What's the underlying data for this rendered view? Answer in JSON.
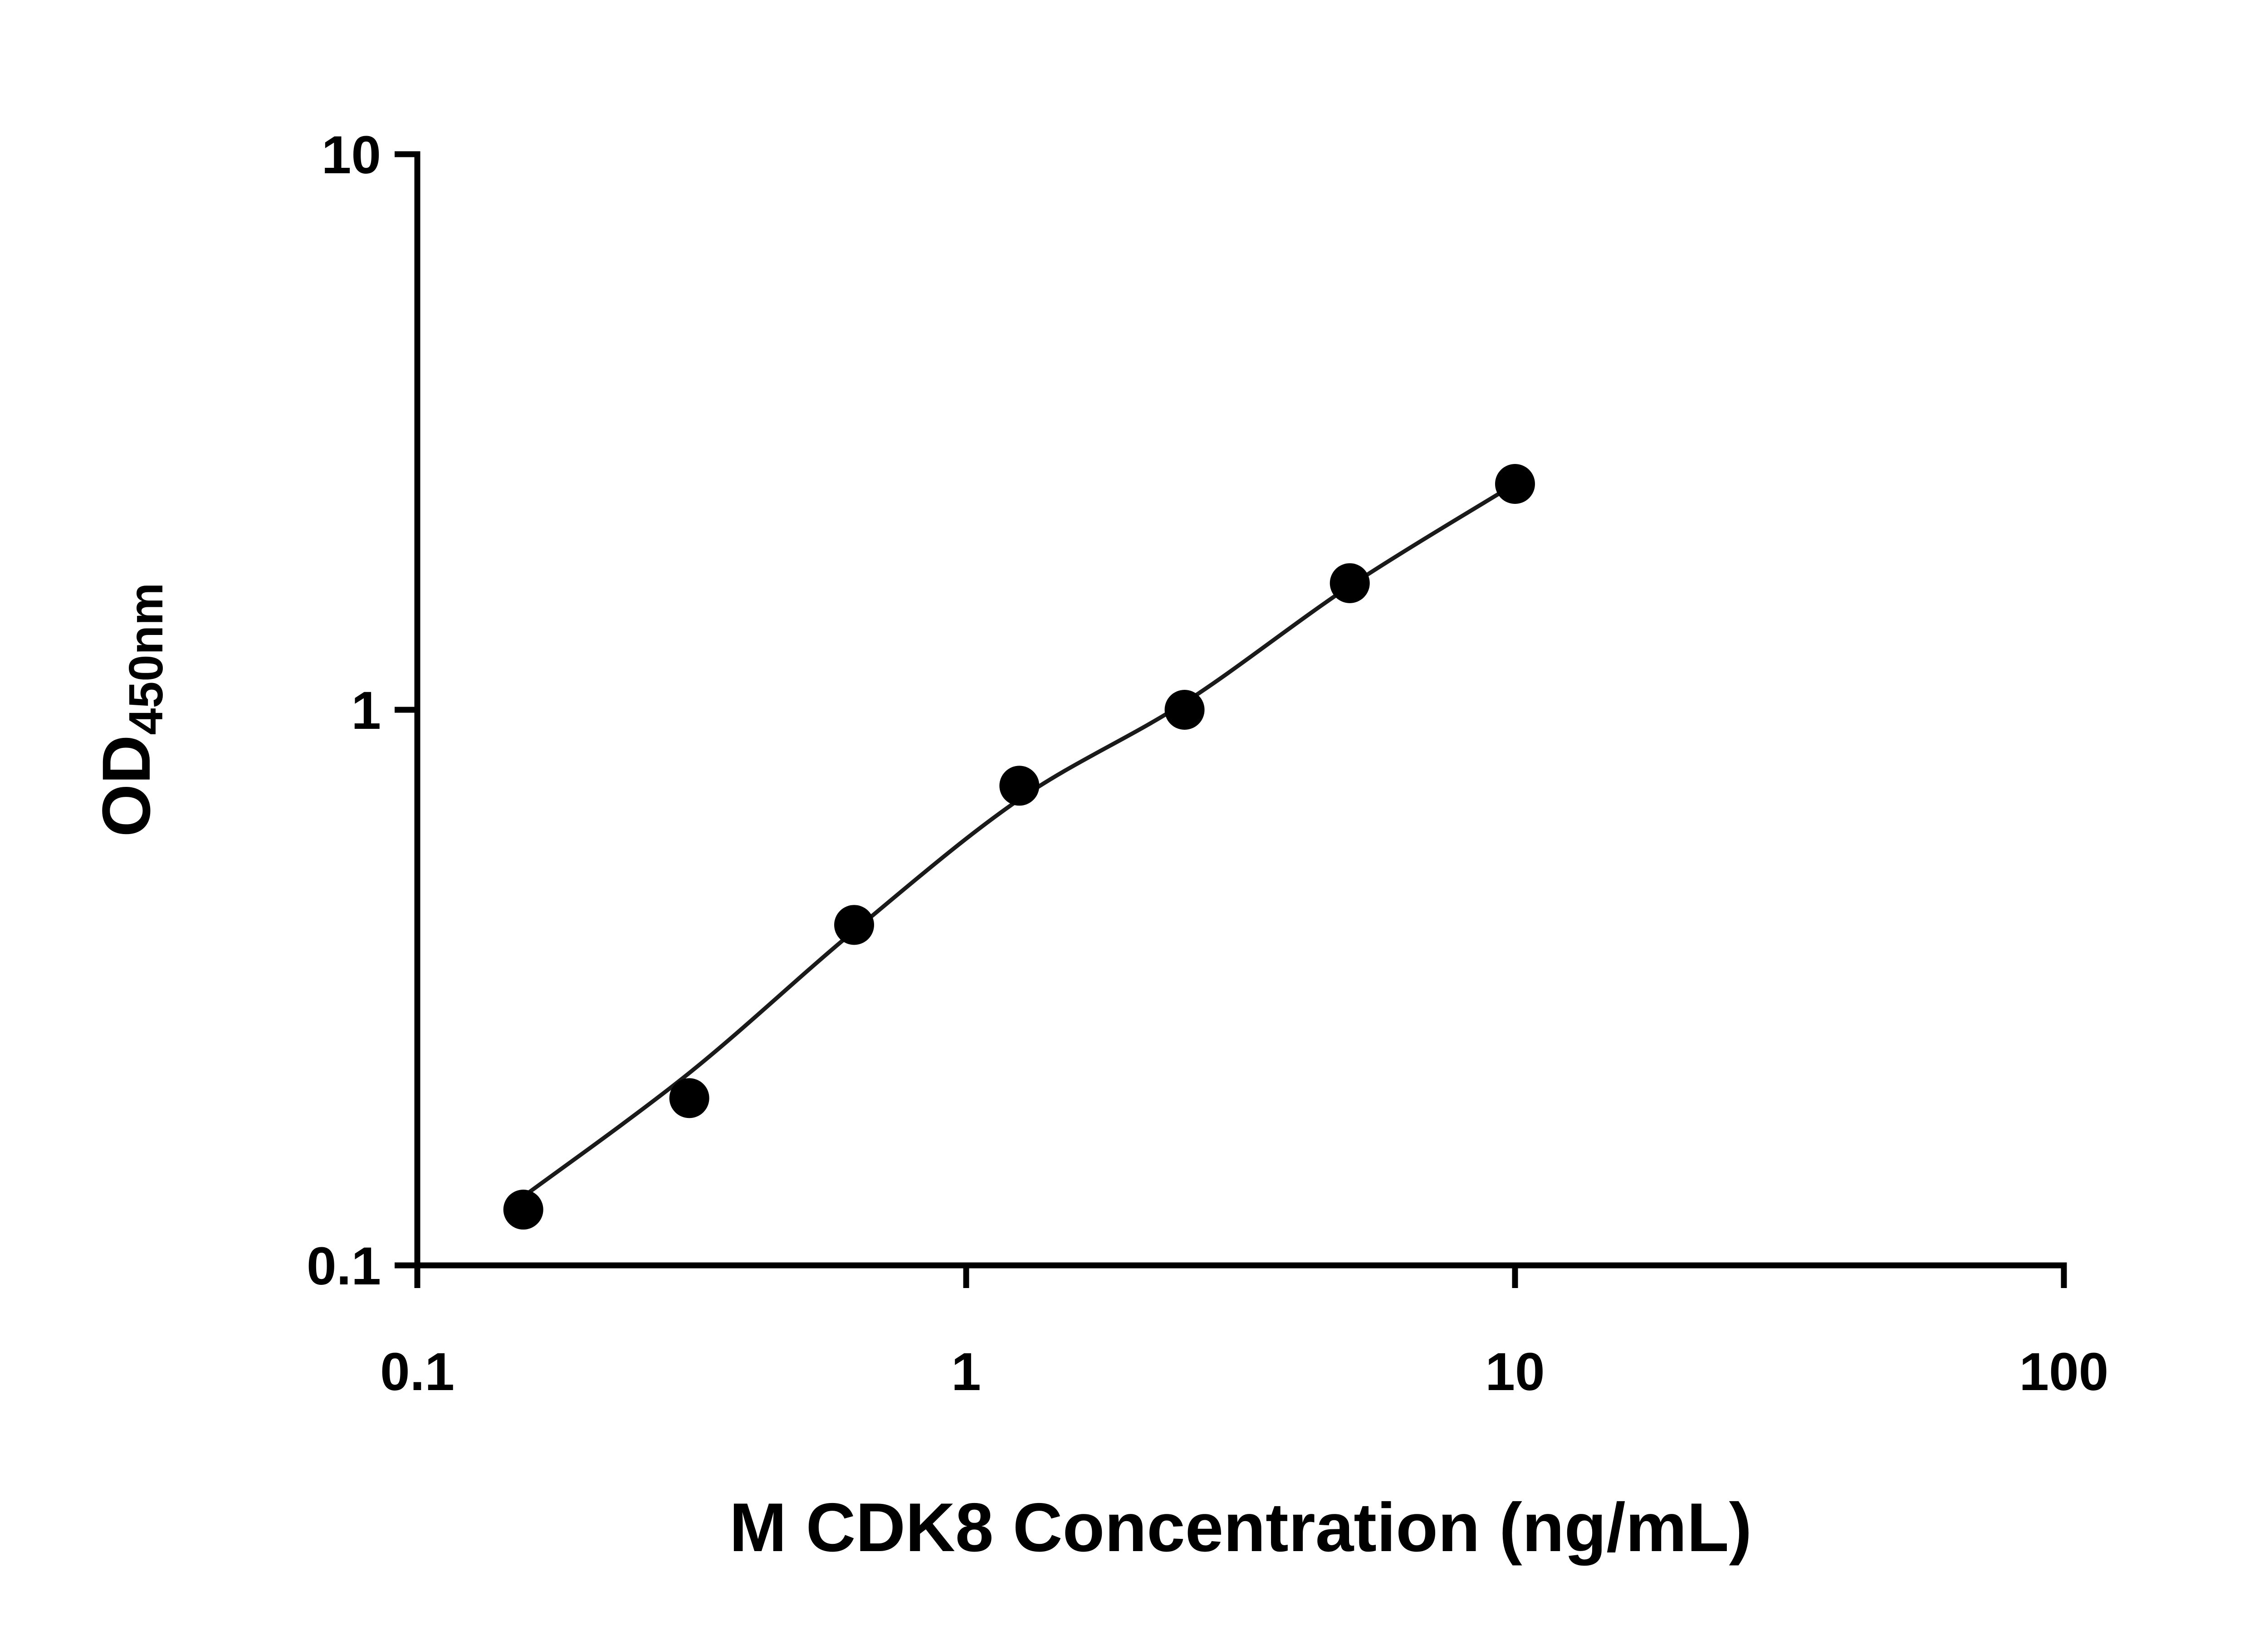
{
  "page": {
    "background": "#ffffff"
  },
  "chart_data": {
    "type": "scatter",
    "title": "",
    "xlabel": "M CDK8 Concentration (ng/mL)",
    "ylabel": "OD450nm",
    "ylabel_main": "OD",
    "ylabel_sub": "450nm",
    "x_scale": "log",
    "y_scale": "log",
    "xlim": [
      0.1,
      100
    ],
    "ylim": [
      0.1,
      10
    ],
    "grid": false,
    "legend": false,
    "marker_color": "#000000",
    "line_color": "#1a1a1a",
    "axis_color": "#000000",
    "x_ticks": [
      {
        "value": 0.1,
        "label": "0.1"
      },
      {
        "value": 1,
        "label": "1"
      },
      {
        "value": 10,
        "label": "10"
      },
      {
        "value": 100,
        "label": "100"
      }
    ],
    "y_ticks": [
      {
        "value": 0.1,
        "label": "0.1"
      },
      {
        "value": 1,
        "label": "1"
      },
      {
        "value": 10,
        "label": "10"
      }
    ],
    "points": [
      {
        "x": 0.156,
        "y": 0.126
      },
      {
        "x": 0.313,
        "y": 0.2
      },
      {
        "x": 0.625,
        "y": 0.41
      },
      {
        "x": 1.25,
        "y": 0.73
      },
      {
        "x": 2.5,
        "y": 1.0
      },
      {
        "x": 5,
        "y": 1.69
      },
      {
        "x": 10,
        "y": 2.55
      }
    ],
    "fit_curve": [
      {
        "x": 0.156,
        "y": 0.133
      },
      {
        "x": 0.313,
        "y": 0.222
      },
      {
        "x": 0.625,
        "y": 0.4
      },
      {
        "x": 1.25,
        "y": 0.69
      },
      {
        "x": 2.5,
        "y": 1.03
      },
      {
        "x": 5,
        "y": 1.67
      },
      {
        "x": 10,
        "y": 2.55
      }
    ]
  }
}
